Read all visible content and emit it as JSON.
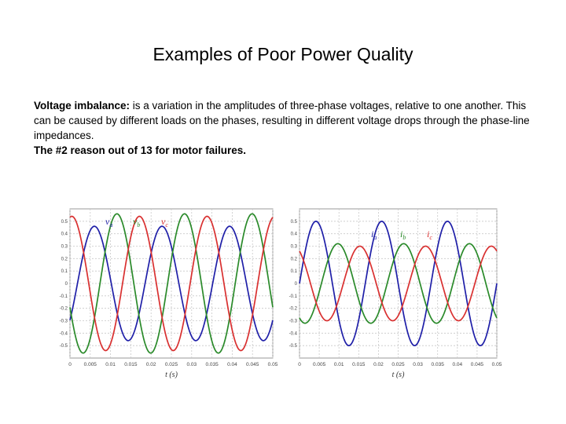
{
  "slide": {
    "title": "Examples of Poor Power Quality",
    "paragraph": {
      "term": "Voltage imbalance:",
      "text": " is a variation in the amplitudes of three-phase voltages, relative to one another. This can be caused by different loads on the phases, resulting in different voltage drops through the phase-line impedances."
    },
    "note": "The #2 reason out of 13 for motor failures."
  },
  "chart_data": [
    {
      "type": "line",
      "xlabel": "t (s)",
      "ylabel": "",
      "xlim": [
        0,
        0.05
      ],
      "ylim": [
        -0.6,
        0.6
      ],
      "grid": true,
      "xticks": [
        "0",
        "0.005",
        "0.01",
        "0.015",
        "0.02",
        "0.025",
        "0.03",
        "0.035",
        "0.04",
        "0.045",
        "0.05"
      ],
      "yticks": [
        "0.5",
        "0.4",
        "0.3",
        "0.2",
        "0.1",
        "0",
        "-0.1",
        "-0.2",
        "-0.3",
        "-0.4",
        "-0.5"
      ],
      "series_labels": [
        "v_a",
        "v_b",
        "v_c"
      ],
      "series": [
        {
          "name": "va",
          "color": "#1f1fa8",
          "amplitude": 0.46,
          "frequency_hz": 60,
          "phase_deg": -40
        },
        {
          "name": "vb",
          "color": "#2a8a2a",
          "amplitude": 0.56,
          "frequency_hz": 60,
          "phase_deg": -160
        },
        {
          "name": "vc",
          "color": "#d93030",
          "amplitude": 0.54,
          "frequency_hz": 60,
          "phase_deg": 80
        }
      ]
    },
    {
      "type": "line",
      "xlabel": "t (s)",
      "ylabel": "",
      "xlim": [
        0,
        0.05
      ],
      "ylim": [
        -0.6,
        0.6
      ],
      "grid": true,
      "xticks": [
        "0",
        "0.005",
        "0.01",
        "0.015",
        "0.02",
        "0.025",
        "0.03",
        "0.035",
        "0.04",
        "0.045",
        "0.05"
      ],
      "yticks": [
        "0.5",
        "0.4",
        "0.3",
        "0.2",
        "0.1",
        "0",
        "-0.1",
        "-0.2",
        "-0.3",
        "-0.4",
        "-0.5"
      ],
      "series_labels": [
        "i_a",
        "i_b",
        "i_c"
      ],
      "series": [
        {
          "name": "ia",
          "color": "#1f1fa8",
          "amplitude": 0.5,
          "frequency_hz": 60,
          "phase_deg": 0
        },
        {
          "name": "ib",
          "color": "#2a8a2a",
          "amplitude": 0.32,
          "frequency_hz": 60,
          "phase_deg": -120
        },
        {
          "name": "ic",
          "color": "#d93030",
          "amplitude": 0.3,
          "frequency_hz": 60,
          "phase_deg": 120
        }
      ]
    }
  ]
}
